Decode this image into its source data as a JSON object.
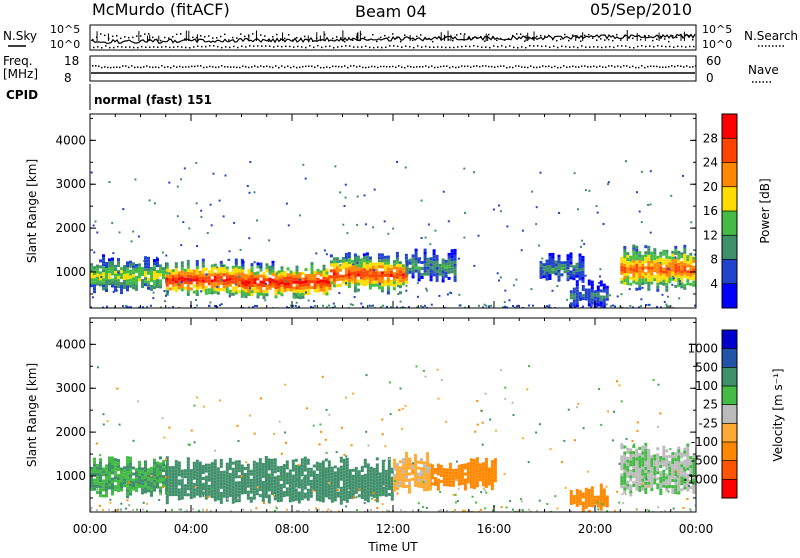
{
  "header": {
    "station": "McMurdo (fitACF)",
    "beam": "Beam 04",
    "date": "05/Sep/2010"
  },
  "strip_labels": {
    "nsky": "N.Sky",
    "nsearch": "N.Search",
    "freq_line1": "Freq.",
    "freq_line2": "[MHz]",
    "nave": "Nave",
    "cpid": "CPID",
    "cpid_value": "normal (fast) 151",
    "noise_ticks_left": [
      "10^5",
      "10^0"
    ],
    "noise_ticks_right": [
      "10^5",
      "10^0"
    ],
    "freq_ticks_left": [
      "18",
      "8"
    ],
    "nave_ticks_right": [
      "60",
      "0"
    ]
  },
  "colors": {
    "power": [
      "#0000ff",
      "#2244cc",
      "#3f8f6a",
      "#44bb44",
      "#ffdd00",
      "#ff8800",
      "#ff4400",
      "#ff0000"
    ],
    "velocity": [
      "#ff0000",
      "#ff5500",
      "#ff8800",
      "#ffaa33",
      "#bbbbbb",
      "#44bb44",
      "#3f8f6a",
      "#2255aa",
      "#0000cc"
    ]
  },
  "chart_data": [
    {
      "type": "heatmap",
      "panel": "power",
      "title": "",
      "xlabel": "",
      "ylabel": "Slant Range [km]",
      "xlim": [
        "00:00",
        "24:00"
      ],
      "ylim": [
        180,
        4600
      ],
      "x_ticks": [
        "00:00",
        "04:00",
        "08:00",
        "12:00",
        "16:00",
        "20:00",
        "00:00"
      ],
      "y_ticks": [
        1000,
        2000,
        3000,
        4000
      ],
      "colorbar": {
        "label": "Power [dB]",
        "ticks": [
          "4",
          "8",
          "12",
          "16",
          "20",
          "24",
          "28"
        ]
      },
      "regions": [
        {
          "x": [
            0.0,
            3.0
          ],
          "range_km": [
            650,
            1250
          ],
          "value": 16
        },
        {
          "x": [
            3.0,
            6.0
          ],
          "range_km": [
            550,
            1150
          ],
          "value": 28
        },
        {
          "x": [
            6.0,
            9.5
          ],
          "range_km": [
            500,
            1100
          ],
          "value": 28
        },
        {
          "x": [
            9.5,
            12.5
          ],
          "range_km": [
            650,
            1300
          ],
          "value": 26
        },
        {
          "x": [
            12.5,
            14.5
          ],
          "range_km": [
            900,
            1400
          ],
          "value": 10
        },
        {
          "x": [
            17.8,
            19.5
          ],
          "range_km": [
            900,
            1300
          ],
          "value": 10
        },
        {
          "x": [
            19.0,
            20.5
          ],
          "range_km": [
            300,
            700
          ],
          "value": 8
        },
        {
          "x": [
            21.0,
            24.0
          ],
          "range_km": [
            700,
            1500
          ],
          "value": 24
        }
      ]
    },
    {
      "type": "heatmap",
      "panel": "velocity",
      "title": "",
      "xlabel": "Time UT",
      "ylabel": "Slant Range [km]",
      "xlim": [
        "00:00",
        "24:00"
      ],
      "ylim": [
        180,
        4600
      ],
      "x_ticks": [
        "00:00",
        "04:00",
        "08:00",
        "12:00",
        "16:00",
        "20:00",
        "00:00"
      ],
      "y_ticks": [
        1000,
        2000,
        3000,
        4000
      ],
      "colorbar": {
        "label": "Velocity [m s⁻¹]",
        "ticks": [
          "1000",
          "500",
          "100",
          "25",
          "-25",
          "-100",
          "-500",
          "-1000"
        ]
      },
      "regions": [
        {
          "x": [
            0.0,
            3.0
          ],
          "range_km": [
            650,
            1300
          ],
          "value": 100
        },
        {
          "x": [
            3.0,
            12.0
          ],
          "range_km": [
            500,
            1300
          ],
          "value": 300
        },
        {
          "x": [
            12.0,
            13.5
          ],
          "range_km": [
            700,
            1400
          ],
          "value": -50
        },
        {
          "x": [
            13.5,
            16.0
          ],
          "range_km": [
            800,
            1300
          ],
          "value": -300
        },
        {
          "x": [
            19.0,
            20.5
          ],
          "range_km": [
            300,
            700
          ],
          "value": -300
        },
        {
          "x": [
            21.0,
            24.0
          ],
          "range_km": [
            700,
            1600
          ],
          "value": 20
        }
      ]
    }
  ]
}
